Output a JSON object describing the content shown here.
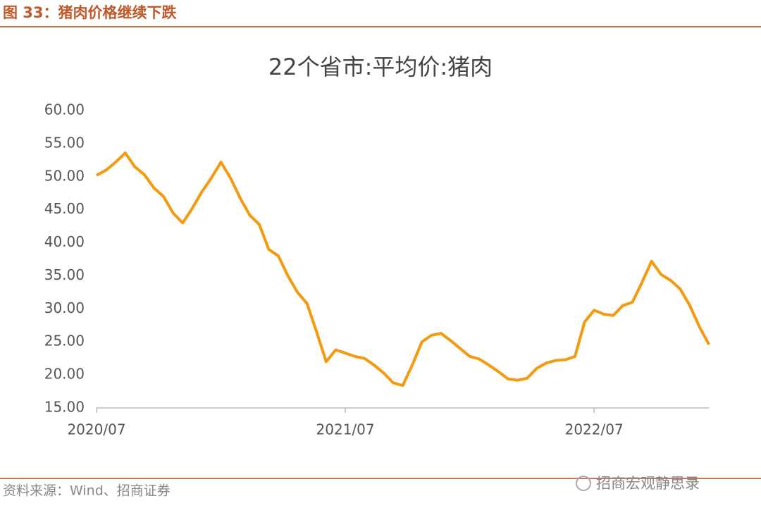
{
  "header": {
    "title": "图 33：猪肉价格继续下跌"
  },
  "chart_data": {
    "type": "line",
    "title": "22个省市:平均价:猪肉",
    "categories": [
      "2020/07",
      null,
      null,
      null,
      null,
      null,
      null,
      null,
      null,
      null,
      null,
      null,
      null,
      null,
      null,
      null,
      null,
      null,
      null,
      null,
      null,
      null,
      null,
      null,
      null,
      null,
      "2021/07",
      null,
      null,
      null,
      null,
      null,
      null,
      null,
      null,
      null,
      null,
      null,
      null,
      null,
      null,
      null,
      null,
      null,
      null,
      null,
      null,
      null,
      null,
      null,
      null,
      null,
      "2022/07",
      null,
      null,
      null,
      null,
      null,
      null,
      null,
      null,
      null,
      null,
      null,
      null
    ],
    "series": [
      {
        "name": "22个省市:平均价:猪肉",
        "color": "#f59a0e",
        "values": [
          50.2,
          51,
          52.2,
          53.6,
          51.5,
          50.3,
          48.3,
          47,
          44.5,
          43,
          45.2,
          47.7,
          49.8,
          52.2,
          49.8,
          46.8,
          44.2,
          42.8,
          39,
          38,
          35,
          32.5,
          30.8,
          26.5,
          22,
          23.8,
          23.3,
          22.8,
          22.5,
          21.5,
          20.3,
          18.8,
          18.4,
          21.5,
          25,
          26,
          26.3,
          25.2,
          24,
          22.8,
          22.4,
          21.5,
          20.5,
          19.4,
          19.2,
          19.5,
          21,
          21.8,
          22.2,
          22.3,
          22.8,
          28,
          29.8,
          29.2,
          29,
          30.5,
          31,
          34,
          37.2,
          35.2,
          34.3,
          33,
          30.5,
          27.3,
          24.6
        ]
      }
    ],
    "ylim": [
      15,
      60
    ],
    "yticks": [
      {
        "value": 15,
        "label": "15.00"
      },
      {
        "value": 20,
        "label": "20.00"
      },
      {
        "value": 25,
        "label": "25.00"
      },
      {
        "value": 30,
        "label": "30.00"
      },
      {
        "value": 35,
        "label": "35.00"
      },
      {
        "value": 40,
        "label": "40.00"
      },
      {
        "value": 45,
        "label": "45.00"
      },
      {
        "value": 50,
        "label": "50.00"
      },
      {
        "value": 55,
        "label": "55.00"
      },
      {
        "value": 60,
        "label": "60.00"
      }
    ],
    "grid": false
  },
  "footer": {
    "source": "资料来源：Wind、招商证券",
    "watermark": "招商宏观静思录"
  }
}
